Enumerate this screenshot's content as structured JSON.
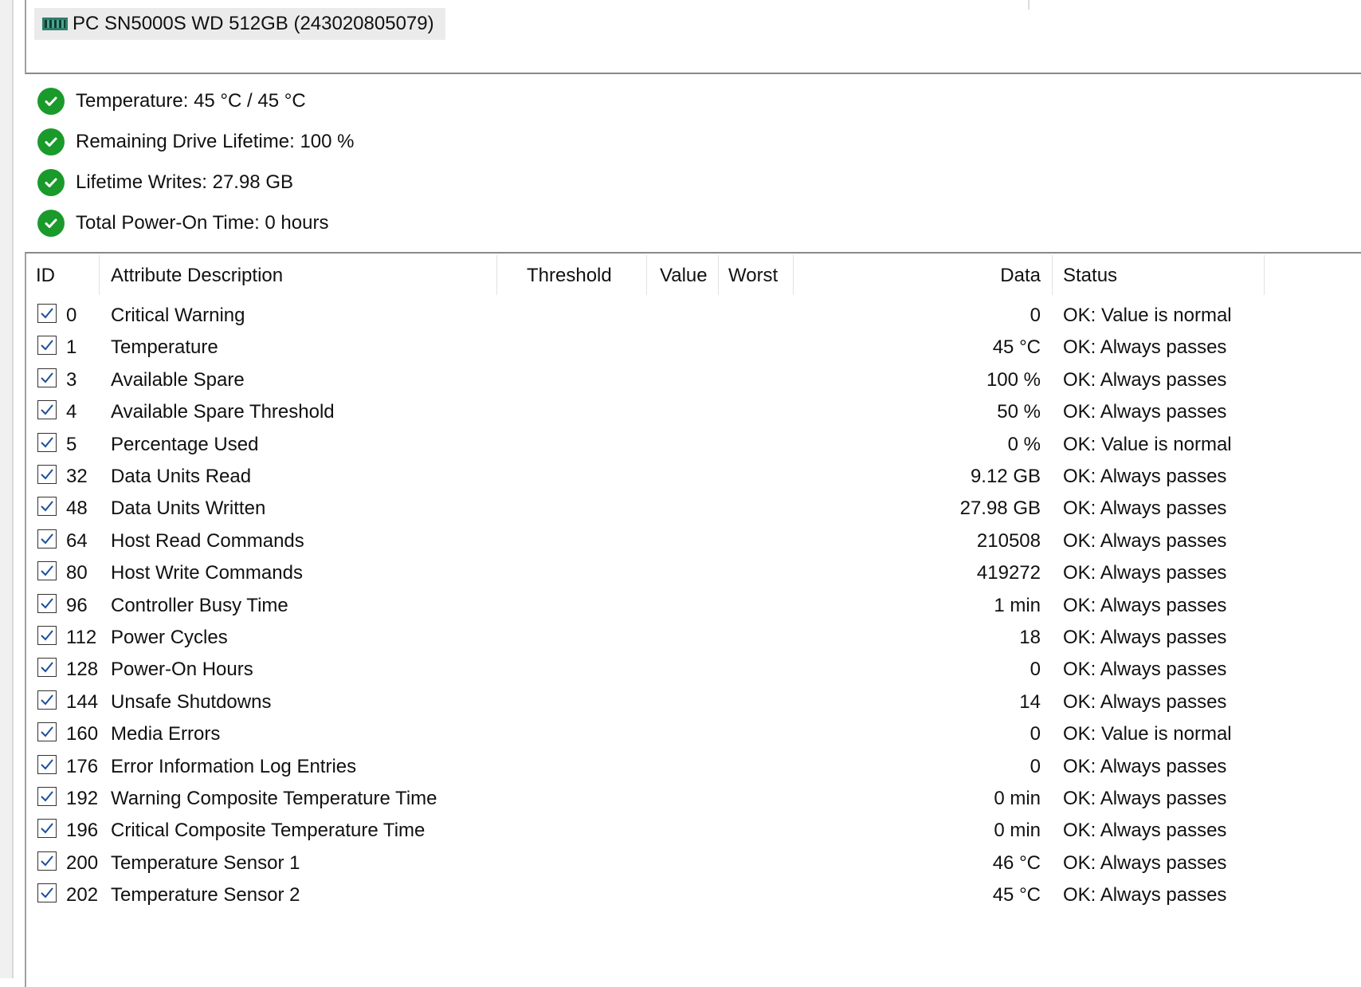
{
  "drive": {
    "name": "PC SN5000S WD 512GB (243020805079)",
    "icon": "drive-icon"
  },
  "summary": [
    {
      "text": "Temperature: 45 °C / 45 °C",
      "icon": "check-circle-icon"
    },
    {
      "text": "Remaining Drive Lifetime: 100 %",
      "icon": "check-circle-icon"
    },
    {
      "text": "Lifetime Writes: 27.98 GB",
      "icon": "check-circle-icon"
    },
    {
      "text": "Total Power-On Time: 0 hours",
      "icon": "check-circle-icon"
    }
  ],
  "colors": {
    "ok_green": "#1a9a2a"
  },
  "table": {
    "columns": {
      "id": "ID",
      "desc": "Attribute Description",
      "threshold": "Threshold",
      "value": "Value",
      "worst": "Worst",
      "data": "Data",
      "status": "Status"
    },
    "rows": [
      {
        "checked": true,
        "id": "0",
        "desc": "Critical Warning",
        "data": "0",
        "status": "OK: Value is normal"
      },
      {
        "checked": true,
        "id": "1",
        "desc": "Temperature",
        "data": "45 °C",
        "status": "OK: Always passes"
      },
      {
        "checked": true,
        "id": "3",
        "desc": "Available Spare",
        "data": "100 %",
        "status": "OK: Always passes"
      },
      {
        "checked": true,
        "id": "4",
        "desc": "Available Spare Threshold",
        "data": "50 %",
        "status": "OK: Always passes"
      },
      {
        "checked": true,
        "id": "5",
        "desc": "Percentage Used",
        "data": "0 %",
        "status": "OK: Value is normal"
      },
      {
        "checked": true,
        "id": "32",
        "desc": "Data Units Read",
        "data": "9.12 GB",
        "status": "OK: Always passes"
      },
      {
        "checked": true,
        "id": "48",
        "desc": "Data Units Written",
        "data": "27.98 GB",
        "status": "OK: Always passes"
      },
      {
        "checked": true,
        "id": "64",
        "desc": "Host Read Commands",
        "data": "210508",
        "status": "OK: Always passes"
      },
      {
        "checked": true,
        "id": "80",
        "desc": "Host Write Commands",
        "data": "419272",
        "status": "OK: Always passes"
      },
      {
        "checked": true,
        "id": "96",
        "desc": "Controller Busy Time",
        "data": "1 min",
        "status": "OK: Always passes"
      },
      {
        "checked": true,
        "id": "112",
        "desc": "Power Cycles",
        "data": "18",
        "status": "OK: Always passes"
      },
      {
        "checked": true,
        "id": "128",
        "desc": "Power-On Hours",
        "data": "0",
        "status": "OK: Always passes"
      },
      {
        "checked": true,
        "id": "144",
        "desc": "Unsafe Shutdowns",
        "data": "14",
        "status": "OK: Always passes"
      },
      {
        "checked": true,
        "id": "160",
        "desc": "Media Errors",
        "data": "0",
        "status": "OK: Value is normal"
      },
      {
        "checked": true,
        "id": "176",
        "desc": "Error Information Log Entries",
        "data": "0",
        "status": "OK: Always passes"
      },
      {
        "checked": true,
        "id": "192",
        "desc": "Warning Composite Temperature Time",
        "data": "0 min",
        "status": "OK: Always passes"
      },
      {
        "checked": true,
        "id": "196",
        "desc": "Critical Composite Temperature Time",
        "data": "0 min",
        "status": "OK: Always passes"
      },
      {
        "checked": true,
        "id": "200",
        "desc": "Temperature Sensor 1",
        "data": "46 °C",
        "status": "OK: Always passes"
      },
      {
        "checked": true,
        "id": "202",
        "desc": "Temperature Sensor 2",
        "data": "45 °C",
        "status": "OK: Always passes"
      }
    ]
  }
}
